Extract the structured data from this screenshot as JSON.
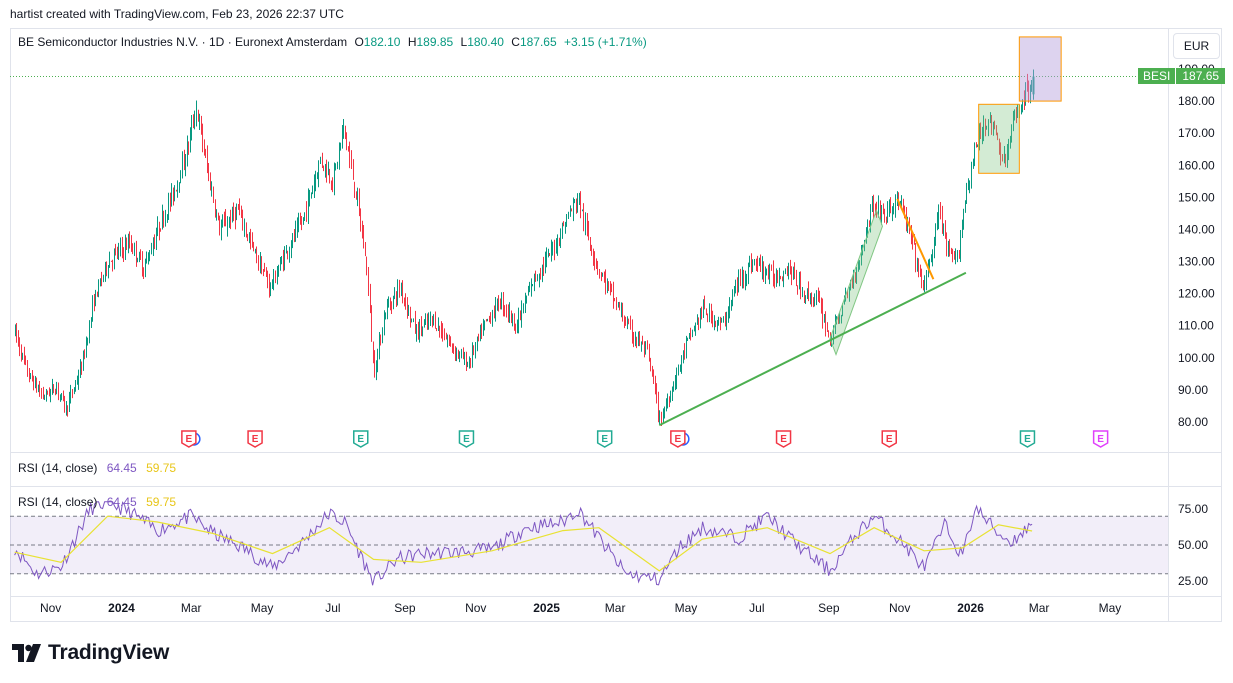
{
  "credit": "hartist created with TradingView.com, Feb 23, 2026 22:37 UTC",
  "legend": {
    "name": "BE Semiconductor Industries N.V.",
    "interval": "1D",
    "exchange": "Euronext Amsterdam",
    "sep": "·",
    "o_key": "O",
    "o_val": "182.10",
    "h_key": "H",
    "h_val": "189.85",
    "l_key": "L",
    "l_val": "180.40",
    "c_key": "C",
    "c_val": "187.65",
    "change": "+3.15 (+1.71%)"
  },
  "currency_button": "EUR",
  "last_price": {
    "symbol": "BESI",
    "price": "187.65"
  },
  "rsi_pane_label": {
    "title": "RSI (14, close)",
    "rsi": "64.45",
    "ma": "59.75"
  },
  "rsi_overlay_label": {
    "title": "RSI (14, close)",
    "rsi": "64.45",
    "ma": "59.75"
  },
  "brand": {
    "name": "TradingView"
  },
  "colors": {
    "up": "#089981",
    "down": "#f23645",
    "trend_green": "#4caf50",
    "trend_orange": "#ff9800",
    "rsi": "#7e57c2",
    "rsi_ma": "#e8e233",
    "box_purple": "#b39ddb",
    "box_green": "#81c784"
  },
  "chart_data": [
    {
      "type": "candlestick",
      "title": "BE Semiconductor Industries N.V. · 1D · Euronext Amsterdam",
      "currency": "EUR",
      "ylim": [
        72,
        200
      ],
      "y_ticks": [
        "80.00",
        "90.00",
        "100.00",
        "110.00",
        "120.00",
        "130.00",
        "140.00",
        "150.00",
        "160.00",
        "170.00",
        "180.00",
        "190.00"
      ],
      "x_ticks": [
        "Nov",
        "2024",
        "Mar",
        "May",
        "Jul",
        "Sep",
        "Nov",
        "2025",
        "Mar",
        "May",
        "Jul",
        "Sep",
        "Nov",
        "2026",
        "Mar",
        "May"
      ],
      "x_ticks_bold": [
        "2024",
        "2025",
        "2026"
      ],
      "price_path": [
        [
          "2023-10-01",
          108
        ],
        [
          "2023-10-12",
          95
        ],
        [
          "2023-10-25",
          88
        ],
        [
          "2023-11-06",
          91
        ],
        [
          "2023-11-14",
          84
        ],
        [
          "2023-11-28",
          98
        ],
        [
          "2023-12-08",
          118
        ],
        [
          "2023-12-20",
          130
        ],
        [
          "2024-01-08",
          136
        ],
        [
          "2024-01-20",
          128
        ],
        [
          "2024-02-01",
          140
        ],
        [
          "2024-02-15",
          152
        ],
        [
          "2024-02-25",
          163
        ],
        [
          "2024-03-05",
          178
        ],
        [
          "2024-03-15",
          158
        ],
        [
          "2024-03-25",
          140
        ],
        [
          "2024-04-10",
          146
        ],
        [
          "2024-04-25",
          132
        ],
        [
          "2024-05-08",
          122
        ],
        [
          "2024-05-20",
          132
        ],
        [
          "2024-06-05",
          143
        ],
        [
          "2024-06-20",
          162
        ],
        [
          "2024-07-01",
          155
        ],
        [
          "2024-07-10",
          172
        ],
        [
          "2024-07-22",
          148
        ],
        [
          "2024-07-30",
          128
        ],
        [
          "2024-08-05",
          95
        ],
        [
          "2024-08-15",
          115
        ],
        [
          "2024-08-28",
          122
        ],
        [
          "2024-09-10",
          108
        ],
        [
          "2024-09-25",
          112
        ],
        [
          "2024-10-10",
          104
        ],
        [
          "2024-10-25",
          98
        ],
        [
          "2024-11-08",
          110
        ],
        [
          "2024-11-22",
          118
        ],
        [
          "2024-12-06",
          110
        ],
        [
          "2024-12-20",
          124
        ],
        [
          "2025-01-05",
          133
        ],
        [
          "2025-01-20",
          145
        ],
        [
          "2025-01-28",
          150
        ],
        [
          "2025-02-05",
          138
        ],
        [
          "2025-02-14",
          128
        ],
        [
          "2025-02-28",
          118
        ],
        [
          "2025-03-14",
          108
        ],
        [
          "2025-03-28",
          102
        ],
        [
          "2025-04-04",
          90
        ],
        [
          "2025-04-08",
          80
        ],
        [
          "2025-04-20",
          92
        ],
        [
          "2025-05-01",
          104
        ],
        [
          "2025-05-15",
          115
        ],
        [
          "2025-06-01",
          110
        ],
        [
          "2025-06-15",
          124
        ],
        [
          "2025-06-28",
          130
        ],
        [
          "2025-07-15",
          125
        ],
        [
          "2025-07-28",
          128
        ],
        [
          "2025-08-10",
          120
        ],
        [
          "2025-08-22",
          118
        ],
        [
          "2025-09-02",
          106
        ],
        [
          "2025-09-15",
          118
        ],
        [
          "2025-09-28",
          132
        ],
        [
          "2025-10-08",
          148
        ],
        [
          "2025-10-20",
          144
        ],
        [
          "2025-10-30",
          150
        ],
        [
          "2025-11-10",
          138
        ],
        [
          "2025-11-20",
          122
        ],
        [
          "2025-11-26",
          128
        ],
        [
          "2025-12-05",
          146
        ],
        [
          "2025-12-12",
          132
        ],
        [
          "2025-12-20",
          130
        ],
        [
          "2025-12-28",
          152
        ],
        [
          "2026-01-05",
          165
        ],
        [
          "2026-01-14",
          175
        ],
        [
          "2026-01-22",
          170
        ],
        [
          "2026-01-30",
          160
        ],
        [
          "2026-02-06",
          172
        ],
        [
          "2026-02-13",
          180
        ],
        [
          "2026-02-20",
          184
        ],
        [
          "2026-02-23",
          187.65
        ]
      ],
      "last": {
        "open": 182.1,
        "high": 189.85,
        "low": 180.4,
        "close": 187.65
      },
      "drawings": {
        "trendline_green": [
          [
            "2025-04-08",
            79
          ],
          [
            "2025-12-28",
            126.5
          ]
        ],
        "trendline_orange": [
          [
            "2025-10-30",
            149.5
          ],
          [
            "2025-11-30",
            124.5
          ]
        ],
        "channel_green": [
          [
            "2025-09-02",
            106
          ],
          [
            "2025-10-12",
            146
          ]
        ],
        "box_green": [
          [
            "2026-01-08",
            157.5
          ],
          [
            "2026-02-12",
            179
          ]
        ],
        "box_purple": [
          [
            "2026-02-12",
            180
          ],
          [
            "2026-03-20",
            200
          ]
        ]
      },
      "earnings_markers": [
        {
          "date": "2024-02-28",
          "label": "E",
          "kind": "past"
        },
        {
          "date": "2024-04-25",
          "label": "E",
          "kind": "past"
        },
        {
          "date": "2024-07-25",
          "label": "E",
          "kind": "past_beat"
        },
        {
          "date": "2024-10-24",
          "label": "E",
          "kind": "past_beat"
        },
        {
          "date": "2025-02-20",
          "label": "E",
          "kind": "past_beat"
        },
        {
          "date": "2025-04-24",
          "label": "E",
          "kind": "past"
        },
        {
          "date": "2025-07-24",
          "label": "E",
          "kind": "past"
        },
        {
          "date": "2025-10-23",
          "label": "E",
          "kind": "past"
        },
        {
          "date": "2026-02-19",
          "label": "E",
          "kind": "past_beat"
        },
        {
          "date": "2026-04-23",
          "label": "E",
          "kind": "future"
        }
      ]
    },
    {
      "type": "line",
      "title": "RSI (14, close)",
      "ylim": [
        15,
        85
      ],
      "y_ticks": [
        "25.00",
        "50.00",
        "75.00"
      ],
      "bands": {
        "upper": 70,
        "middle": 50,
        "lower": 30
      },
      "series": [
        {
          "name": "RSI",
          "x": [
            "2023-10-01",
            "2023-10-20",
            "2023-11-10",
            "2023-12-05",
            "2023-12-20",
            "2024-01-10",
            "2024-02-01",
            "2024-03-01",
            "2024-03-20",
            "2024-04-15",
            "2024-05-10",
            "2024-06-05",
            "2024-06-28",
            "2024-07-12",
            "2024-08-05",
            "2024-08-25",
            "2024-09-15",
            "2024-10-15",
            "2024-11-15",
            "2024-12-15",
            "2025-01-15",
            "2025-01-28",
            "2025-02-15",
            "2025-03-10",
            "2025-04-08",
            "2025-04-25",
            "2025-05-15",
            "2025-06-15",
            "2025-07-10",
            "2025-08-05",
            "2025-09-02",
            "2025-09-25",
            "2025-10-10",
            "2025-11-05",
            "2025-11-22",
            "2025-12-10",
            "2025-12-25",
            "2026-01-05",
            "2026-01-25",
            "2026-02-05",
            "2026-02-23"
          ],
          "y": [
            48,
            30,
            35,
            75,
            80,
            72,
            60,
            70,
            58,
            48,
            34,
            52,
            72,
            65,
            24,
            40,
            44,
            45,
            47,
            62,
            66,
            75,
            55,
            30,
            26,
            48,
            62,
            55,
            70,
            50,
            32,
            58,
            70,
            50,
            34,
            64,
            42,
            76,
            58,
            52,
            64.45
          ]
        },
        {
          "name": "RSI-based MA",
          "x": [
            "2023-10-01",
            "2023-11-10",
            "2023-12-20",
            "2024-02-01",
            "2024-03-20",
            "2024-05-10",
            "2024-06-28",
            "2024-08-05",
            "2024-09-15",
            "2024-11-15",
            "2025-01-15",
            "2025-02-15",
            "2025-04-08",
            "2025-05-15",
            "2025-07-10",
            "2025-09-02",
            "2025-10-10",
            "2025-11-22",
            "2025-12-25",
            "2026-01-25",
            "2026-02-23"
          ],
          "y": [
            45,
            38,
            70,
            66,
            58,
            44,
            62,
            40,
            38,
            46,
            60,
            62,
            32,
            54,
            62,
            44,
            62,
            46,
            48,
            64,
            59.75
          ]
        }
      ]
    }
  ]
}
